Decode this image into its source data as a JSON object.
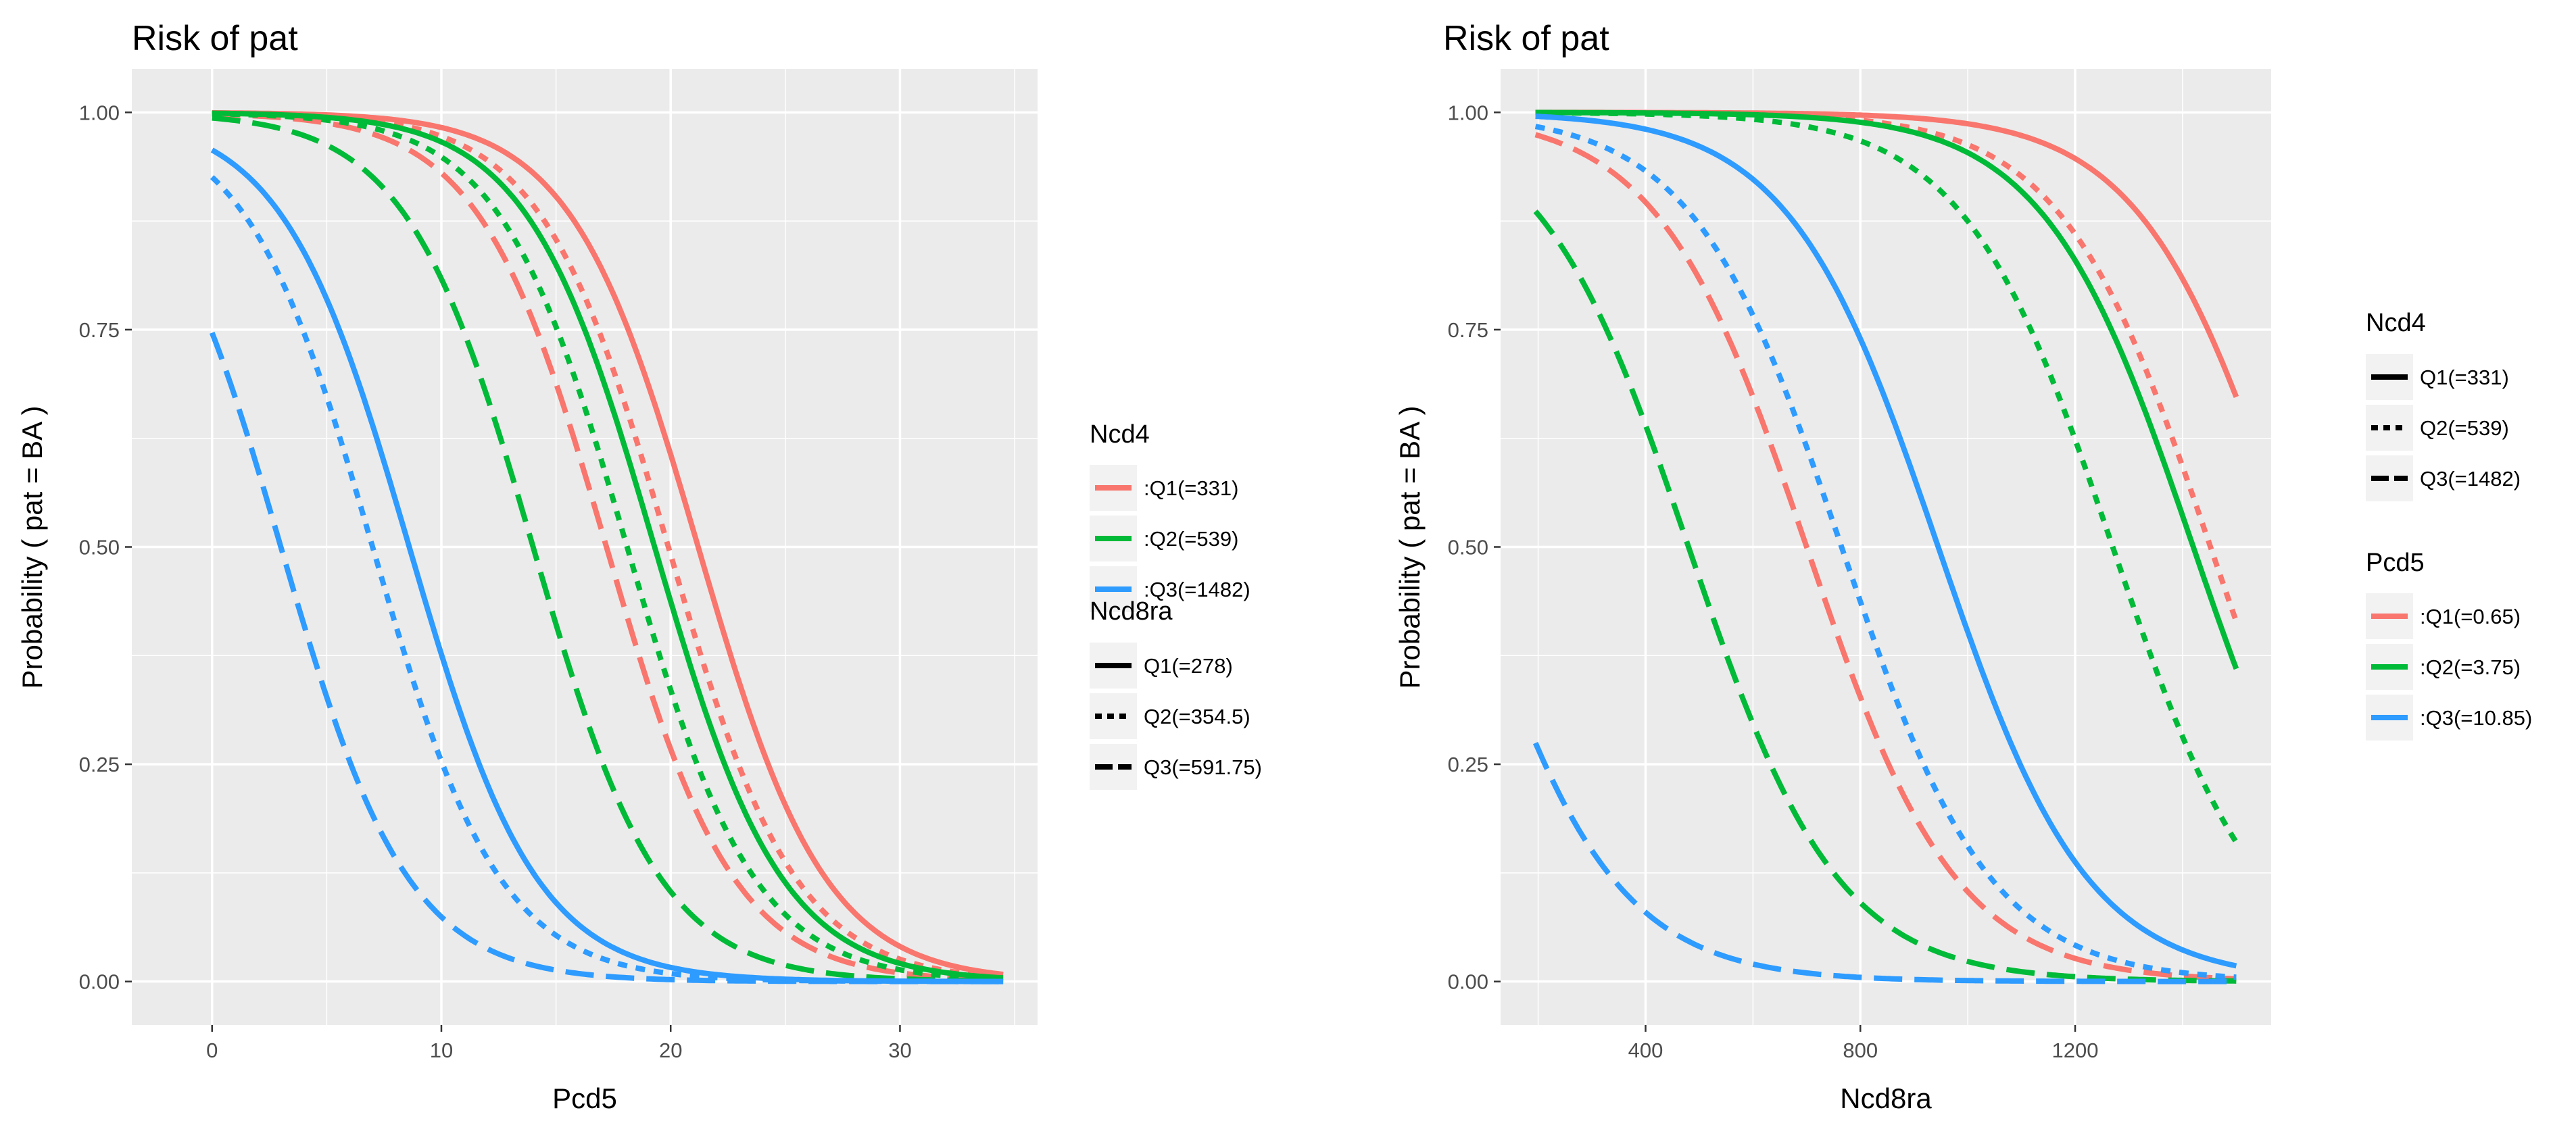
{
  "chart_data": [
    {
      "type": "line",
      "title": "Risk of pat",
      "xlabel": "Pcd5",
      "ylabel": "Probability ( pat  =  BA )",
      "xlim": [
        -3.5,
        36
      ],
      "ylim": [
        -0.05,
        1.05
      ],
      "x_range": [
        0,
        34.5
      ],
      "xticks": [
        0,
        10,
        20,
        30
      ],
      "yticks": [
        0,
        0.25,
        0.5,
        0.75,
        1
      ],
      "ytick_labels": [
        "0.00",
        "0.25",
        "0.50",
        "0.75",
        "1.00"
      ],
      "grid": true,
      "color_legend": {
        "title": "Ncd4",
        "entries": [
          {
            "label": ":Q1(=331)",
            "color": "#F8766D"
          },
          {
            "label": ":Q2(=539)",
            "color": "#00BA38"
          },
          {
            "label": ":Q3(=1482)",
            "color": "#2E9BFF"
          }
        ]
      },
      "linetype_legend": {
        "title": "Ncd8ra",
        "entries": [
          {
            "label": "Q1(=278)",
            "dash": "solid"
          },
          {
            "label": "Q2(=354.5)",
            "dash": "dotted"
          },
          {
            "label": "Q3(=591.75)",
            "dash": "dashed"
          }
        ]
      },
      "series": [
        {
          "name": "Q1 / Q1",
          "color": "#F8766D",
          "dash": "solid",
          "midpoint": 21.2,
          "slope": 0.36
        },
        {
          "name": "Q1 / Q2",
          "color": "#F8766D",
          "dash": "dotted",
          "midpoint": 19.9,
          "slope": 0.36
        },
        {
          "name": "Q1 / Q3",
          "color": "#F8766D",
          "dash": "dashed",
          "midpoint": 17.2,
          "slope": 0.36
        },
        {
          "name": "Q2 / Q1",
          "color": "#00BA38",
          "dash": "solid",
          "midpoint": 19.3,
          "slope": 0.36
        },
        {
          "name": "Q2 / Q2",
          "color": "#00BA38",
          "dash": "dotted",
          "midpoint": 18.1,
          "slope": 0.36
        },
        {
          "name": "Q2 / Q3",
          "color": "#00BA38",
          "dash": "dashed",
          "midpoint": 14.0,
          "slope": 0.36
        },
        {
          "name": "Q3 / Q1",
          "color": "#2E9BFF",
          "dash": "solid",
          "midpoint": 8.6,
          "slope": 0.36
        },
        {
          "name": "Q3 / Q2",
          "color": "#2E9BFF",
          "dash": "dotted",
          "midpoint": 7.0,
          "slope": 0.36
        },
        {
          "name": "Q3 / Q3",
          "color": "#2E9BFF",
          "dash": "dashed",
          "midpoint": 3.0,
          "slope": 0.36
        }
      ]
    },
    {
      "type": "line",
      "title": "Risk of pat",
      "xlabel": "Ncd8ra",
      "ylabel": "Probability ( pat  =  BA )",
      "xlim": [
        130,
        1565
      ],
      "ylim": [
        -0.05,
        1.05
      ],
      "x_range": [
        195,
        1500
      ],
      "xticks": [
        400,
        800,
        1200
      ],
      "yticks": [
        0,
        0.25,
        0.5,
        0.75,
        1
      ],
      "ytick_labels": [
        "0.00",
        "0.25",
        "0.50",
        "0.75",
        "1.00"
      ],
      "grid": true,
      "linetype_legend": {
        "title": "Ncd4",
        "entries": [
          {
            "label": "Q1(=331)",
            "dash": "solid"
          },
          {
            "label": "Q2(=539)",
            "dash": "dotted"
          },
          {
            "label": "Q3(=1482)",
            "dash": "dashed"
          }
        ]
      },
      "color_legend": {
        "title": "Pcd5",
        "entries": [
          {
            "label": ":Q1(=0.65)",
            "color": "#F8766D"
          },
          {
            "label": ":Q2(=3.75)",
            "color": "#00BA38"
          },
          {
            "label": ":Q3(=10.85)",
            "color": "#2E9BFF"
          }
        ]
      },
      "series": [
        {
          "name": "Q1 / Q1",
          "color": "#F8766D",
          "dash": "solid",
          "midpoint": 1600,
          "slope": 0.0072
        },
        {
          "name": "Q1 / Q2",
          "color": "#F8766D",
          "dash": "dotted",
          "midpoint": 1452,
          "slope": 0.0072
        },
        {
          "name": "Q1 / Q3",
          "color": "#F8766D",
          "dash": "dashed",
          "midpoint": 700,
          "slope": 0.0072
        },
        {
          "name": "Q2 / Q1",
          "color": "#00BA38",
          "dash": "solid",
          "midpoint": 1420,
          "slope": 0.0072
        },
        {
          "name": "Q2 / Q2",
          "color": "#00BA38",
          "dash": "dotted",
          "midpoint": 1270,
          "slope": 0.0072
        },
        {
          "name": "Q2 / Q3",
          "color": "#00BA38",
          "dash": "dashed",
          "midpoint": 480,
          "slope": 0.0072
        },
        {
          "name": "Q3 / Q1",
          "color": "#2E9BFF",
          "dash": "solid",
          "midpoint": 945,
          "slope": 0.0072
        },
        {
          "name": "Q3 / Q2",
          "color": "#2E9BFF",
          "dash": "dotted",
          "midpoint": 765,
          "slope": 0.0072
        },
        {
          "name": "Q3 / Q3",
          "color": "#2E9BFF",
          "dash": "dashed",
          "midpoint": 60,
          "slope": 0.0072
        }
      ]
    }
  ]
}
